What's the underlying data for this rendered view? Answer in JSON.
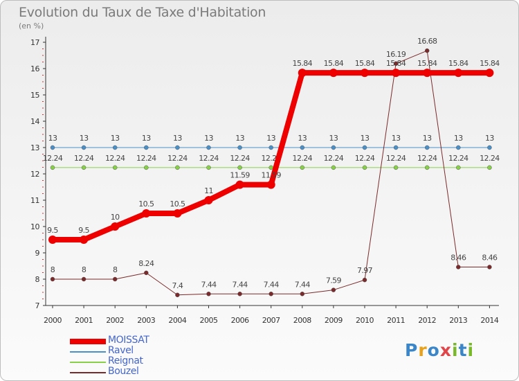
{
  "header": {
    "title": "Evolution du Taux de Taxe d'Habitation",
    "subtitle": "(en %)"
  },
  "logo": {
    "letters": [
      "P",
      "r",
      "o",
      "x",
      "i",
      "t",
      "i"
    ],
    "colors": [
      "#3a86c8",
      "#e8a11a",
      "#3a86c8",
      "#e0454a",
      "#78b82a",
      "#3a86c8",
      "#78b82a"
    ]
  },
  "chart_data": {
    "type": "line",
    "title": "Evolution du Taux de Taxe d'Habitation",
    "subtitle": "(en %)",
    "x": [
      "2000",
      "2001",
      "2002",
      "2003",
      "2004",
      "2005",
      "2006",
      "2007",
      "2008",
      "2009",
      "2010",
      "2011",
      "2012",
      "2013",
      "2014"
    ],
    "ylim": [
      7,
      17
    ],
    "yticks": [
      "7",
      "8",
      "9",
      "10",
      "11",
      "12",
      "13",
      "14",
      "15",
      "16",
      "17"
    ],
    "grid": false,
    "legend_position": "bottom-left",
    "series": [
      {
        "name": "MOISSAT",
        "color": "#ee0000",
        "emphasis": true,
        "values": [
          9.5,
          9.5,
          10,
          10.5,
          10.5,
          11,
          11.59,
          11.59,
          15.84,
          15.84,
          15.84,
          15.84,
          15.84,
          15.84,
          15.84
        ],
        "labels": [
          "9.5",
          "9.5",
          "10",
          "10.5",
          "10.5",
          "11",
          "11.59",
          "11.59",
          "15.84",
          "15.84",
          "15.84",
          "15.84",
          "15.84",
          "15.84",
          "15.84"
        ]
      },
      {
        "name": "Ravel",
        "color": "#4a90c8",
        "values": [
          13,
          13,
          13,
          13,
          13,
          13,
          13,
          13,
          13,
          13,
          13,
          13,
          13,
          13,
          13
        ],
        "labels": [
          "13",
          "13",
          "13",
          "13",
          "13",
          "13",
          "13",
          "13",
          "13",
          "13",
          "13",
          "13",
          "13",
          "13",
          "13"
        ]
      },
      {
        "name": "Reignat",
        "color": "#88d048",
        "values": [
          12.24,
          12.24,
          12.24,
          12.24,
          12.24,
          12.24,
          12.24,
          12.24,
          12.24,
          12.24,
          12.24,
          12.24,
          12.24,
          12.24,
          12.24
        ],
        "labels": [
          "12.24",
          "12.24",
          "12.24",
          "12.24",
          "12.24",
          "12.24",
          "12.24",
          "12.24",
          "12.24",
          "12.24",
          "12.24",
          "12.24",
          "12.24",
          "12.24",
          "12.24"
        ]
      },
      {
        "name": "Bouzel",
        "color": "#7a2a2a",
        "values": [
          8,
          8,
          8,
          8.24,
          7.4,
          7.44,
          7.44,
          7.44,
          7.44,
          7.59,
          7.97,
          16.19,
          16.68,
          8.46,
          8.46
        ],
        "labels": [
          "8",
          "8",
          "8",
          "8.24",
          "7.4",
          "7.44",
          "7.44",
          "7.44",
          "7.44",
          "7.59",
          "7.97",
          "16.19",
          "16.68",
          "8.46",
          "8.46"
        ]
      }
    ]
  }
}
